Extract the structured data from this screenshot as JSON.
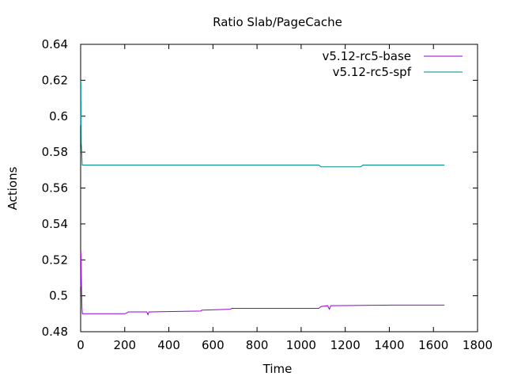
{
  "chart_data": {
    "type": "line",
    "title": "Ratio Slab/PageCache",
    "xlabel": "Time",
    "ylabel": "Actions",
    "xlim": [
      0,
      1800
    ],
    "ylim": [
      0.48,
      0.64
    ],
    "xticks": [
      0,
      200,
      400,
      600,
      800,
      1000,
      1200,
      1400,
      1600,
      1800
    ],
    "yticks": [
      0.48,
      0.5,
      0.52,
      0.54,
      0.56,
      0.58,
      0.6,
      0.62,
      0.64
    ],
    "xtick_labels": [
      "0",
      "200",
      "400",
      "600",
      "800",
      "1000",
      "1200",
      "1400",
      "1600",
      "1800"
    ],
    "ytick_labels": [
      "0.48",
      "0.5",
      "0.52",
      "0.54",
      "0.56",
      "0.58",
      "0.6",
      "0.62",
      "0.64"
    ],
    "grid": false,
    "legend_position": "top-right",
    "series": [
      {
        "name": "v5.12-rc5-base",
        "color": "#9400d3",
        "x": [
          0,
          1,
          2,
          4,
          6,
          8,
          200,
          210,
          215,
          225,
          300,
          305,
          310,
          315,
          545,
          550,
          680,
          685,
          1080,
          1090,
          1120,
          1128,
          1135,
          1420,
          1650
        ],
        "y": [
          0.505,
          0.525,
          0.515,
          0.505,
          0.493,
          0.49,
          0.49,
          0.4905,
          0.491,
          0.491,
          0.491,
          0.4895,
          0.491,
          0.491,
          0.4915,
          0.492,
          0.4925,
          0.493,
          0.493,
          0.494,
          0.4945,
          0.4925,
          0.4945,
          0.4948,
          0.4948
        ]
      },
      {
        "name": "v5.12-rc5-spf",
        "color": "#008b8b",
        "x": [
          0,
          1,
          2,
          3,
          5,
          7,
          1080,
          1090,
          1270,
          1280,
          1650
        ],
        "y": [
          0.595,
          0.62,
          0.6,
          0.585,
          0.58,
          0.5728,
          0.5728,
          0.5718,
          0.5718,
          0.5728,
          0.5728
        ]
      }
    ]
  }
}
